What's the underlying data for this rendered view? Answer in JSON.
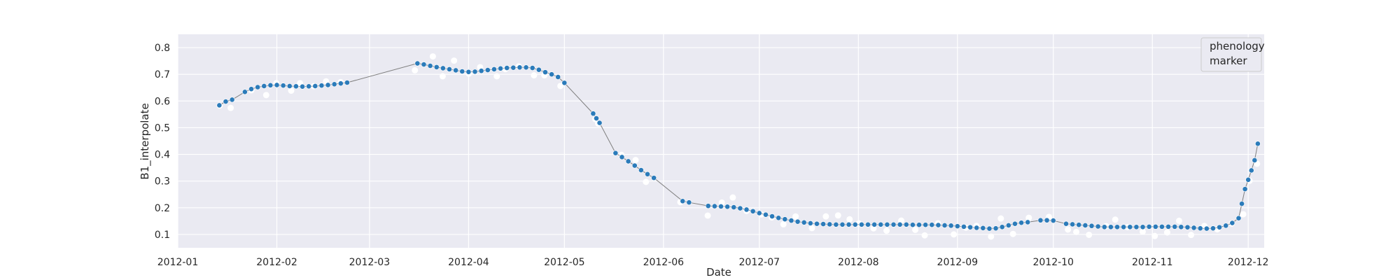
{
  "chart_data": {
    "type": "scatter",
    "xlabel": "Date",
    "ylabel": "B1_interpolate",
    "xlim": [
      "2012-01-01",
      "2012-12-06"
    ],
    "ylim": [
      0.05,
      0.85
    ],
    "x_ticks": [
      "2012-01",
      "2012-02",
      "2012-03",
      "2012-04",
      "2012-05",
      "2012-06",
      "2012-07",
      "2012-08",
      "2012-09",
      "2012-10",
      "2012-11",
      "2012-12"
    ],
    "y_ticks": [
      "0.1",
      "0.2",
      "0.3",
      "0.4",
      "0.5",
      "0.6",
      "0.7",
      "0.8"
    ],
    "grid": true,
    "legend": {
      "position": "top-right",
      "lines": [
        "phenology",
        "marker"
      ]
    },
    "colors": {
      "background": "#eaeaf2",
      "grid": "#ffffff",
      "raw_points": "#ffffff",
      "smoothed_points": "#2b7bba",
      "line": "#7f7f7f"
    },
    "series": [
      {
        "points": [
          [
            "2012-01-14",
            0.584
          ],
          [
            "2012-01-16",
            0.598
          ],
          [
            "2012-01-18",
            0.605
          ],
          [
            "2012-01-22",
            0.634
          ],
          [
            "2012-01-24",
            0.645
          ],
          [
            "2012-01-26",
            0.652
          ],
          [
            "2012-01-28",
            0.656
          ],
          [
            "2012-01-30",
            0.659
          ],
          [
            "2012-02-01",
            0.66
          ],
          [
            "2012-02-03",
            0.658
          ],
          [
            "2012-02-05",
            0.656
          ],
          [
            "2012-02-07",
            0.655
          ],
          [
            "2012-02-09",
            0.654
          ],
          [
            "2012-02-11",
            0.655
          ],
          [
            "2012-02-13",
            0.656
          ],
          [
            "2012-02-15",
            0.658
          ],
          [
            "2012-02-17",
            0.66
          ],
          [
            "2012-02-19",
            0.663
          ],
          [
            "2012-02-21",
            0.666
          ],
          [
            "2012-02-23",
            0.669
          ],
          [
            "2012-03-16",
            0.741
          ],
          [
            "2012-03-18",
            0.737
          ],
          [
            "2012-03-20",
            0.732
          ],
          [
            "2012-03-22",
            0.727
          ],
          [
            "2012-03-24",
            0.723
          ],
          [
            "2012-03-26",
            0.719
          ],
          [
            "2012-03-28",
            0.715
          ],
          [
            "2012-03-30",
            0.711
          ],
          [
            "2012-04-01",
            0.709
          ],
          [
            "2012-04-03",
            0.71
          ],
          [
            "2012-04-05",
            0.713
          ],
          [
            "2012-04-07",
            0.716
          ],
          [
            "2012-04-09",
            0.719
          ],
          [
            "2012-04-11",
            0.722
          ],
          [
            "2012-04-13",
            0.724
          ],
          [
            "2012-04-15",
            0.725
          ],
          [
            "2012-04-17",
            0.726
          ],
          [
            "2012-04-19",
            0.726
          ],
          [
            "2012-04-21",
            0.724
          ],
          [
            "2012-04-23",
            0.717
          ],
          [
            "2012-04-25",
            0.708
          ],
          [
            "2012-04-27",
            0.7
          ],
          [
            "2012-04-29",
            0.69
          ],
          [
            "2012-05-01",
            0.668
          ],
          [
            "2012-05-10",
            0.553
          ],
          [
            "2012-05-11",
            0.535
          ],
          [
            "2012-05-12",
            0.518
          ],
          [
            "2012-05-17",
            0.405
          ],
          [
            "2012-05-19",
            0.39
          ],
          [
            "2012-05-21",
            0.374
          ],
          [
            "2012-05-23",
            0.358
          ],
          [
            "2012-05-25",
            0.341
          ],
          [
            "2012-05-27",
            0.326
          ],
          [
            "2012-05-29",
            0.312
          ],
          [
            "2012-06-07",
            0.225
          ],
          [
            "2012-06-09",
            0.22
          ],
          [
            "2012-06-15",
            0.207
          ],
          [
            "2012-06-17",
            0.206
          ],
          [
            "2012-06-19",
            0.205
          ],
          [
            "2012-06-21",
            0.204
          ],
          [
            "2012-06-23",
            0.202
          ],
          [
            "2012-06-25",
            0.198
          ],
          [
            "2012-06-27",
            0.193
          ],
          [
            "2012-06-29",
            0.187
          ],
          [
            "2012-07-01",
            0.18
          ],
          [
            "2012-07-03",
            0.174
          ],
          [
            "2012-07-05",
            0.168
          ],
          [
            "2012-07-07",
            0.162
          ],
          [
            "2012-07-09",
            0.157
          ],
          [
            "2012-07-11",
            0.152
          ],
          [
            "2012-07-13",
            0.148
          ],
          [
            "2012-07-15",
            0.145
          ],
          [
            "2012-07-17",
            0.142
          ],
          [
            "2012-07-19",
            0.14
          ],
          [
            "2012-07-21",
            0.139
          ],
          [
            "2012-07-23",
            0.138
          ],
          [
            "2012-07-25",
            0.137
          ],
          [
            "2012-07-27",
            0.137
          ],
          [
            "2012-07-29",
            0.137
          ],
          [
            "2012-07-31",
            0.137
          ],
          [
            "2012-08-02",
            0.137
          ],
          [
            "2012-08-04",
            0.137
          ],
          [
            "2012-08-06",
            0.137
          ],
          [
            "2012-08-08",
            0.137
          ],
          [
            "2012-08-10",
            0.137
          ],
          [
            "2012-08-12",
            0.137
          ],
          [
            "2012-08-14",
            0.137
          ],
          [
            "2012-08-16",
            0.137
          ],
          [
            "2012-08-18",
            0.136
          ],
          [
            "2012-08-20",
            0.136
          ],
          [
            "2012-08-22",
            0.136
          ],
          [
            "2012-08-24",
            0.136
          ],
          [
            "2012-08-26",
            0.135
          ],
          [
            "2012-08-28",
            0.134
          ],
          [
            "2012-08-30",
            0.133
          ],
          [
            "2012-09-01",
            0.131
          ],
          [
            "2012-09-03",
            0.129
          ],
          [
            "2012-09-05",
            0.127
          ],
          [
            "2012-09-07",
            0.125
          ],
          [
            "2012-09-09",
            0.124
          ],
          [
            "2012-09-11",
            0.122
          ],
          [
            "2012-09-13",
            0.123
          ],
          [
            "2012-09-15",
            0.128
          ],
          [
            "2012-09-17",
            0.134
          ],
          [
            "2012-09-19",
            0.14
          ],
          [
            "2012-09-21",
            0.144
          ],
          [
            "2012-09-23",
            0.146
          ],
          [
            "2012-09-27",
            0.153
          ],
          [
            "2012-09-29",
            0.153
          ],
          [
            "2012-10-01",
            0.152
          ],
          [
            "2012-10-05",
            0.14
          ],
          [
            "2012-10-07",
            0.138
          ],
          [
            "2012-10-09",
            0.136
          ],
          [
            "2012-10-11",
            0.134
          ],
          [
            "2012-10-13",
            0.132
          ],
          [
            "2012-10-15",
            0.13
          ],
          [
            "2012-10-17",
            0.128
          ],
          [
            "2012-10-19",
            0.128
          ],
          [
            "2012-10-21",
            0.128
          ],
          [
            "2012-10-23",
            0.128
          ],
          [
            "2012-10-25",
            0.128
          ],
          [
            "2012-10-27",
            0.128
          ],
          [
            "2012-10-29",
            0.128
          ],
          [
            "2012-10-31",
            0.129
          ],
          [
            "2012-11-02",
            0.129
          ],
          [
            "2012-11-04",
            0.129
          ],
          [
            "2012-11-06",
            0.129
          ],
          [
            "2012-11-08",
            0.129
          ],
          [
            "2012-11-10",
            0.128
          ],
          [
            "2012-11-12",
            0.127
          ],
          [
            "2012-11-14",
            0.125
          ],
          [
            "2012-11-16",
            0.123
          ],
          [
            "2012-11-18",
            0.122
          ],
          [
            "2012-11-20",
            0.123
          ],
          [
            "2012-11-22",
            0.127
          ],
          [
            "2012-11-24",
            0.133
          ],
          [
            "2012-11-26",
            0.143
          ],
          [
            "2012-11-28",
            0.161
          ],
          [
            "2012-11-29",
            0.215
          ],
          [
            "2012-11-30",
            0.27
          ],
          [
            "2012-12-01",
            0.305
          ],
          [
            "2012-12-02",
            0.34
          ],
          [
            "2012-12-03",
            0.378
          ],
          [
            "2012-12-04",
            0.44
          ]
        ]
      }
    ]
  }
}
